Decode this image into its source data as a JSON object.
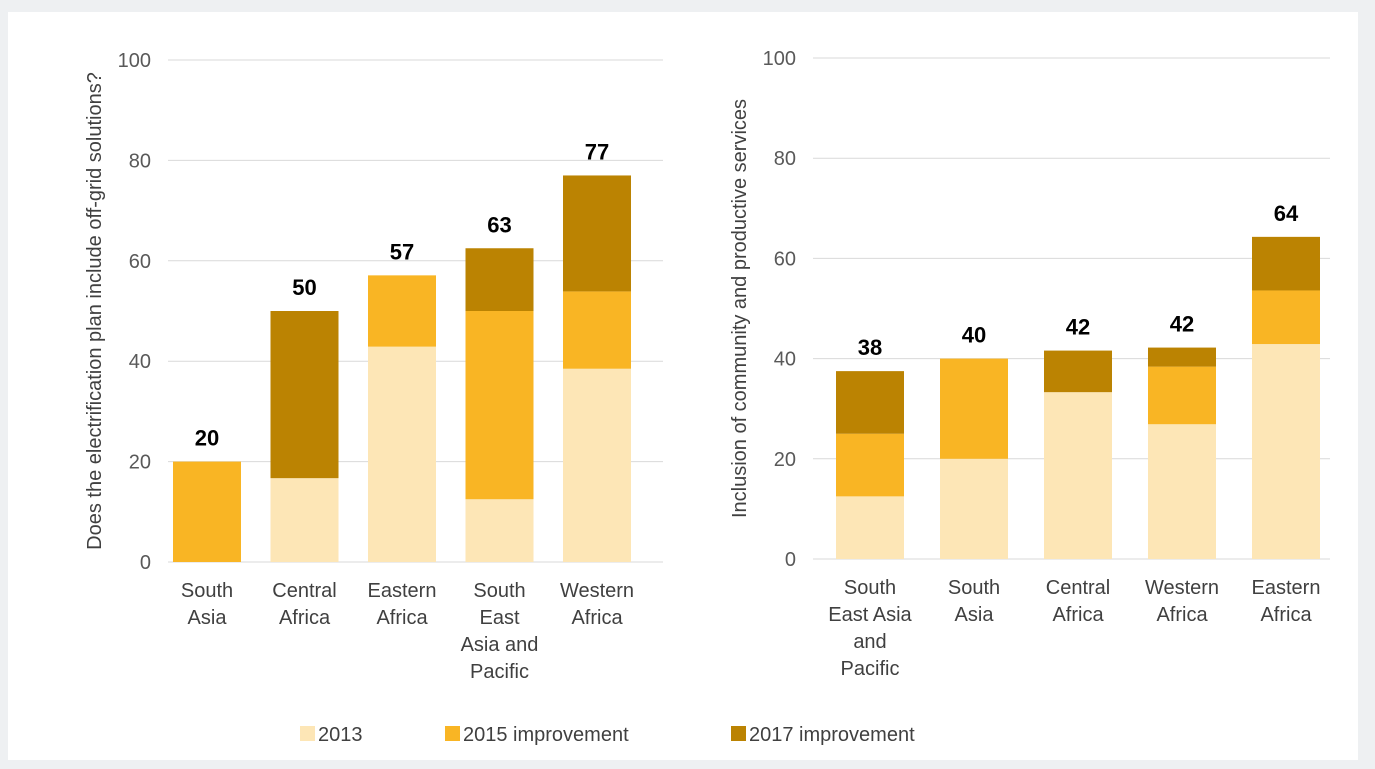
{
  "colors": {
    "s2013": "#fde6b6",
    "s2015": "#f9b524",
    "s2017": "#bb8302",
    "grid": "#d9d9d9"
  },
  "legend": [
    {
      "key": "s2013",
      "label": "2013"
    },
    {
      "key": "s2015",
      "label": "2015 improvement"
    },
    {
      "key": "s2017",
      "label": "2017 improvement"
    }
  ],
  "chart_data": [
    {
      "type": "bar",
      "stacked": true,
      "ylabel": "Does the electrification plan include off-grid solutions?",
      "ylim": [
        0,
        100
      ],
      "yticks": [
        0,
        20,
        40,
        60,
        80,
        100
      ],
      "grid": true,
      "categories": [
        [
          "South",
          "Asia"
        ],
        [
          "Central",
          "Africa"
        ],
        [
          "Eastern",
          "Africa"
        ],
        [
          "South",
          "East",
          "Asia and",
          "Pacific"
        ],
        [
          "Western",
          "Africa"
        ]
      ],
      "series": [
        {
          "name": "2013",
          "key": "s2013",
          "values": [
            0,
            16.7,
            42.9,
            12.5,
            38.5
          ]
        },
        {
          "name": "2015 improvement",
          "key": "s2015",
          "values": [
            20,
            0,
            14.2,
            37.5,
            15.4
          ]
        },
        {
          "name": "2017 improvement",
          "key": "s2017",
          "values": [
            0,
            33.3,
            0,
            12.5,
            23.1
          ]
        }
      ],
      "totals": [
        "20",
        "50",
        "57",
        "63",
        "77"
      ]
    },
    {
      "type": "bar",
      "stacked": true,
      "ylabel": "Inclusion of community and productive services",
      "ylim": [
        0,
        100
      ],
      "yticks": [
        0,
        20,
        40,
        60,
        80,
        100
      ],
      "grid": true,
      "categories": [
        [
          "South",
          "East Asia",
          "and",
          "Pacific"
        ],
        [
          "South",
          "Asia"
        ],
        [
          "Central",
          "Africa"
        ],
        [
          "Western",
          "Africa"
        ],
        [
          "Eastern",
          "Africa"
        ]
      ],
      "series": [
        {
          "name": "2013",
          "key": "s2013",
          "values": [
            12.5,
            20,
            33.3,
            26.9,
            42.9
          ]
        },
        {
          "name": "2015 improvement",
          "key": "s2015",
          "values": [
            12.5,
            20,
            0,
            11.5,
            10.7
          ]
        },
        {
          "name": "2017 improvement",
          "key": "s2017",
          "values": [
            12.5,
            0,
            8.3,
            3.8,
            10.7
          ]
        }
      ],
      "totals": [
        "38",
        "40",
        "42",
        "42",
        "64"
      ]
    }
  ]
}
